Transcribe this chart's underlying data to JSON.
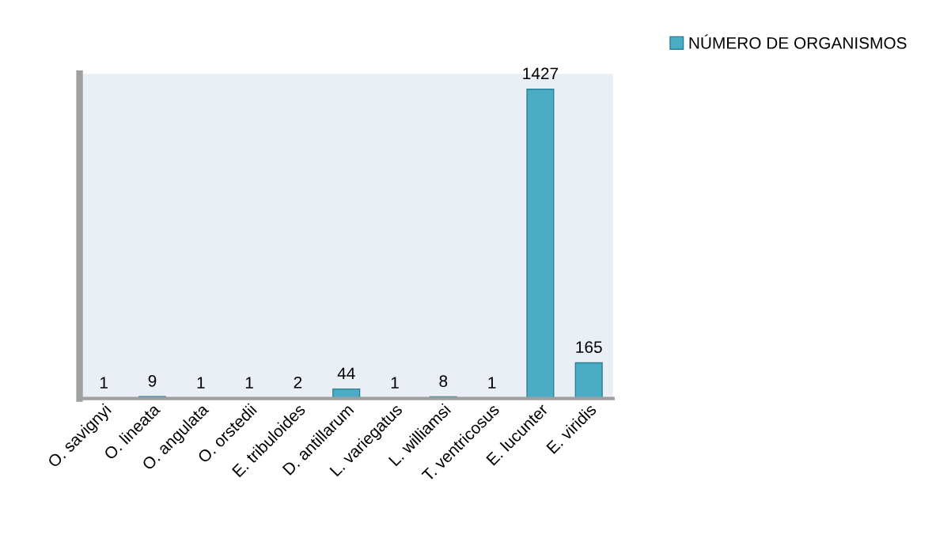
{
  "chart_data": {
    "type": "bar",
    "categories": [
      "O. savignyi",
      "O. lineata",
      "O. angulata",
      "O. orstedii",
      "E. tribuloides",
      "D. antillarum",
      "L. variegatus",
      "L. williamsi",
      "T. ventricosus",
      "E. lucunter",
      "E. viridis"
    ],
    "series": [
      {
        "name": "NÚMERO DE ORGANISMOS",
        "color": "#4bacc6",
        "values": [
          1,
          9,
          1,
          1,
          2,
          44,
          1,
          8,
          1,
          1427,
          165
        ]
      }
    ],
    "data_labels": true,
    "legend": "top right",
    "grid": false,
    "tick_labels": "x"
  }
}
